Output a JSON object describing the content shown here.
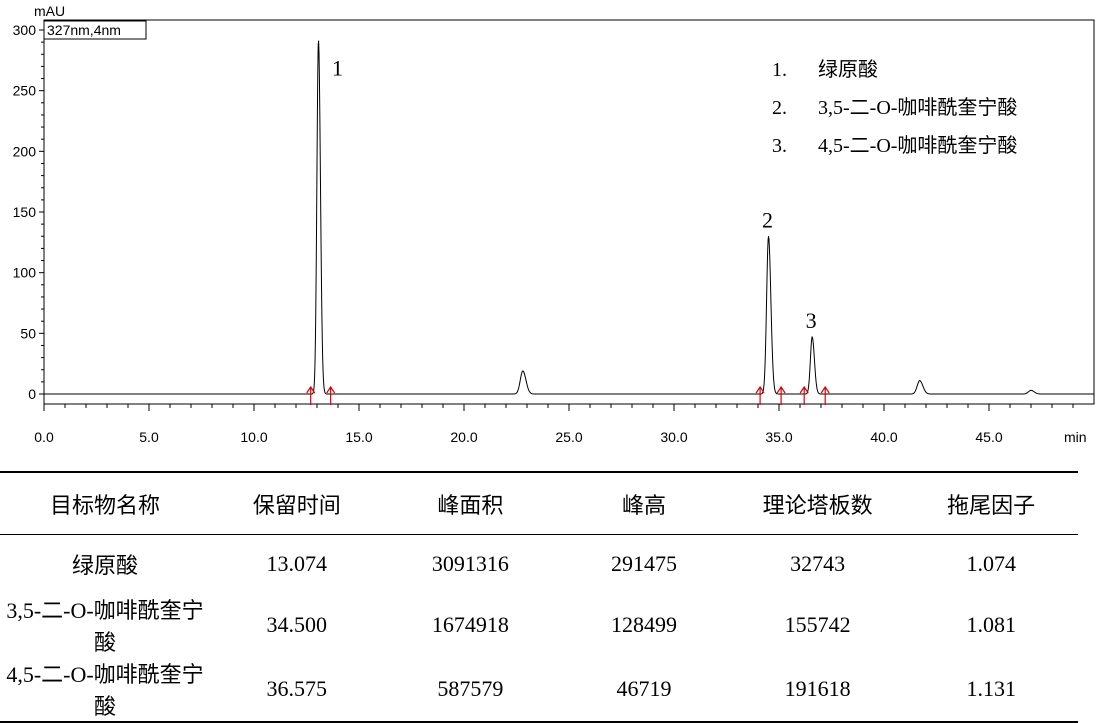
{
  "chart_data": {
    "type": "line",
    "ylabel": "mAU",
    "xlabel": "min",
    "channel_label": "327nm,4nm",
    "xlim": [
      0,
      50
    ],
    "ylim": [
      -25,
      305
    ],
    "x_ticks": [
      "0.0",
      "5.0",
      "10.0",
      "15.0",
      "20.0",
      "25.0",
      "30.0",
      "35.0",
      "40.0",
      "45.0"
    ],
    "y_ticks": [
      "0",
      "50",
      "100",
      "150",
      "200",
      "250",
      "300"
    ],
    "series": [
      {
        "peaks": [
          {
            "x": 13.07,
            "y": 292,
            "label": "1"
          },
          {
            "x": 22.8,
            "y": 19
          },
          {
            "x": 34.5,
            "y": 130,
            "label": "2"
          },
          {
            "x": 36.58,
            "y": 47,
            "label": "3"
          },
          {
            "x": 41.7,
            "y": 11
          },
          {
            "x": 47.0,
            "y": 3
          }
        ]
      }
    ],
    "integration_markers": [
      12.7,
      13.65,
      34.1,
      35.1,
      36.2,
      37.2
    ],
    "legend": [
      {
        "num": "1.",
        "name": "绿原酸"
      },
      {
        "num": "2.",
        "name": "3,5-二-O-咖啡酰奎宁酸"
      },
      {
        "num": "3.",
        "name": "4,5-二-O-咖啡酰奎宁酸"
      }
    ]
  },
  "table": {
    "headers": [
      "目标物名称",
      "保留时间",
      "峰面积",
      "峰高",
      "理论塔板数",
      "拖尾因子"
    ],
    "rows": [
      [
        "绿原酸",
        "13.074",
        "3091316",
        "291475",
        "32743",
        "1.074"
      ],
      [
        "3,5-二-O-咖啡酰奎宁酸",
        "34.500",
        "1674918",
        "128499",
        "155742",
        "1.081"
      ],
      [
        "4,5-二-O-咖啡酰奎宁酸",
        "36.575",
        "587579",
        "46719",
        "191618",
        "1.131"
      ]
    ]
  }
}
